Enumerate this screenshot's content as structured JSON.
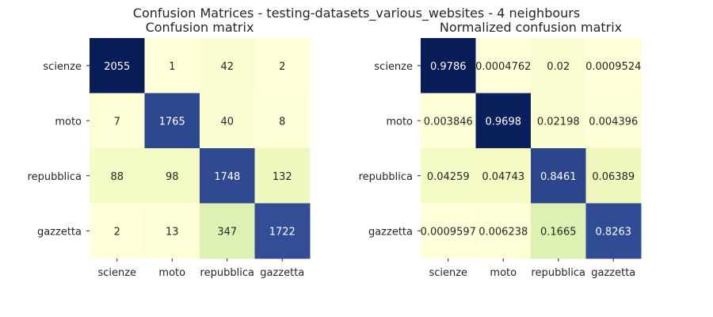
{
  "suptitle": "Confusion Matrices - testing-datasets_various_websites - 4 neighbours",
  "colors": {
    "cmap_low": "#ffffd9",
    "cmap_mid1": "#f1f9bd",
    "cmap_mid2": "#dbf0b2",
    "cmap_mid3": "#bce4b5",
    "cmap_mid4": "#3d58a6",
    "cmap_high": "#081d58",
    "text_dark": "#262626",
    "text_light": "#ffffff"
  },
  "chart_data": [
    {
      "type": "heatmap",
      "title": "Confusion matrix",
      "xlabel": "",
      "ylabel": "",
      "x_labels": [
        "scienze",
        "moto",
        "repubblica",
        "gazzetta"
      ],
      "y_labels": [
        "scienze",
        "moto",
        "repubblica",
        "gazzetta"
      ],
      "values": [
        [
          2055,
          1,
          42,
          2
        ],
        [
          7,
          1765,
          40,
          8
        ],
        [
          88,
          98,
          1748,
          132
        ],
        [
          2,
          13,
          347,
          1722
        ]
      ],
      "labels": [
        [
          "2055",
          "1",
          "42",
          "2"
        ],
        [
          "7",
          "1765",
          "40",
          "8"
        ],
        [
          "88",
          "98",
          "1748",
          "132"
        ],
        [
          "2",
          "13",
          "347",
          "1722"
        ]
      ],
      "vmin": 0,
      "vmax": 2055,
      "colorbar": false
    },
    {
      "type": "heatmap",
      "title": "Normalized confusion matrix",
      "xlabel": "",
      "ylabel": "",
      "x_labels": [
        "scienze",
        "moto",
        "repubblica",
        "gazzetta"
      ],
      "y_labels": [
        "scienze",
        "moto",
        "repubblica",
        "gazzetta"
      ],
      "values": [
        [
          0.9786,
          0.0004762,
          0.02,
          0.0009524
        ],
        [
          0.003846,
          0.9698,
          0.02198,
          0.004396
        ],
        [
          0.04259,
          0.04743,
          0.8461,
          0.06389
        ],
        [
          0.0009597,
          0.006238,
          0.1665,
          0.8263
        ]
      ],
      "labels": [
        [
          "0.9786",
          "0.0004762",
          "0.02",
          "0.0009524"
        ],
        [
          "0.003846",
          "0.9698",
          "0.02198",
          "0.004396"
        ],
        [
          "0.04259",
          "0.04743",
          "0.8461",
          "0.06389"
        ],
        [
          "0.0009597",
          "0.006238",
          "0.1665",
          "0.8263"
        ]
      ],
      "vmin": 0,
      "vmax": 0.9786,
      "colorbar": false
    }
  ]
}
